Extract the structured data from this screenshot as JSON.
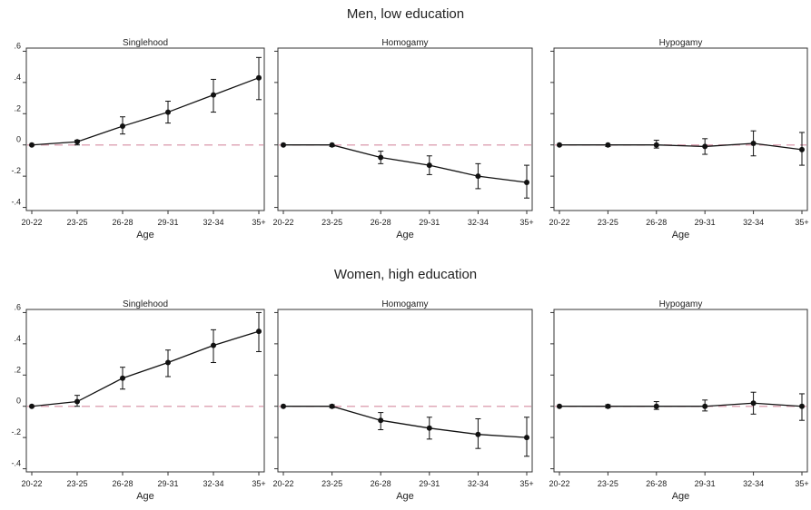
{
  "rows": [
    {
      "title": "Men, low education"
    },
    {
      "title": "Women, high education"
    }
  ],
  "chart_data": [
    {
      "type": "line",
      "group": "Men, low education",
      "title": "Singlehood",
      "xlabel": "Age",
      "categories": [
        "20-22",
        "23-25",
        "26-28",
        "29-31",
        "32-34",
        "35+"
      ],
      "values": [
        0,
        0.02,
        0.12,
        0.21,
        0.32,
        0.43
      ],
      "ci_low": [
        0,
        0.0,
        0.07,
        0.14,
        0.21,
        0.29
      ],
      "ci_high": [
        0,
        0.03,
        0.18,
        0.28,
        0.42,
        0.56
      ],
      "ylim": [
        -0.42,
        0.62
      ],
      "yticks": [
        -0.4,
        -0.2,
        0,
        0.2,
        0.4,
        0.6
      ],
      "ytick_labels": [
        "-.4",
        "-.2",
        "0",
        ".2",
        ".4",
        ".6"
      ],
      "reference_line": 0
    },
    {
      "type": "line",
      "group": "Men, low education",
      "title": "Homogamy",
      "xlabel": "Age",
      "categories": [
        "20-22",
        "23-25",
        "26-28",
        "29-31",
        "32-34",
        "35+"
      ],
      "values": [
        0,
        0,
        -0.08,
        -0.13,
        -0.2,
        -0.24
      ],
      "ci_low": [
        0,
        -0.01,
        -0.12,
        -0.19,
        -0.28,
        -0.34
      ],
      "ci_high": [
        0,
        0.0,
        -0.04,
        -0.07,
        -0.12,
        -0.13
      ],
      "ylim": [
        -0.42,
        0.62
      ],
      "yticks": [
        -0.4,
        -0.2,
        0,
        0.2,
        0.4,
        0.6
      ],
      "reference_line": 0
    },
    {
      "type": "line",
      "group": "Men, low education",
      "title": "Hypogamy",
      "xlabel": "Age",
      "categories": [
        "20-22",
        "23-25",
        "26-28",
        "29-31",
        "32-34",
        "35+"
      ],
      "values": [
        0,
        0,
        0,
        -0.01,
        0.01,
        -0.03
      ],
      "ci_low": [
        0,
        -0.01,
        -0.02,
        -0.06,
        -0.07,
        -0.13
      ],
      "ci_high": [
        0,
        0.0,
        0.03,
        0.04,
        0.09,
        0.08
      ],
      "ylim": [
        -0.42,
        0.62
      ],
      "yticks": [
        -0.4,
        -0.2,
        0,
        0.2,
        0.4,
        0.6
      ],
      "reference_line": 0
    },
    {
      "type": "line",
      "group": "Women, high education",
      "title": "Singlehood",
      "xlabel": "Age",
      "categories": [
        "20-22",
        "23-25",
        "26-28",
        "29-31",
        "32-34",
        "35+"
      ],
      "values": [
        0,
        0.03,
        0.18,
        0.28,
        0.39,
        0.48
      ],
      "ci_low": [
        0,
        0.0,
        0.11,
        0.19,
        0.28,
        0.35
      ],
      "ci_high": [
        0,
        0.07,
        0.25,
        0.36,
        0.49,
        0.6
      ],
      "ylim": [
        -0.42,
        0.62
      ],
      "yticks": [
        -0.4,
        -0.2,
        0,
        0.2,
        0.4,
        0.6
      ],
      "ytick_labels": [
        "-.4",
        "-.2",
        "0",
        ".2",
        ".4",
        ".6"
      ],
      "reference_line": 0
    },
    {
      "type": "line",
      "group": "Women, high education",
      "title": "Homogamy",
      "xlabel": "Age",
      "categories": [
        "20-22",
        "23-25",
        "26-28",
        "29-31",
        "32-34",
        "35+"
      ],
      "values": [
        0,
        0,
        -0.09,
        -0.14,
        -0.18,
        -0.2
      ],
      "ci_low": [
        0,
        -0.01,
        -0.15,
        -0.21,
        -0.27,
        -0.32
      ],
      "ci_high": [
        0,
        0.01,
        -0.04,
        -0.07,
        -0.08,
        -0.07
      ],
      "ylim": [
        -0.42,
        0.62
      ],
      "yticks": [
        -0.4,
        -0.2,
        0,
        0.2,
        0.4,
        0.6
      ],
      "reference_line": 0
    },
    {
      "type": "line",
      "group": "Women, high education",
      "title": "Hypogamy",
      "xlabel": "Age",
      "categories": [
        "20-22",
        "23-25",
        "26-28",
        "29-31",
        "32-34",
        "35+"
      ],
      "values": [
        0,
        0,
        0,
        0,
        0.02,
        0
      ],
      "ci_low": [
        0,
        -0.01,
        -0.02,
        -0.03,
        -0.05,
        -0.09
      ],
      "ci_high": [
        0,
        0.01,
        0.03,
        0.04,
        0.09,
        0.08
      ],
      "ylim": [
        -0.42,
        0.62
      ],
      "yticks": [
        -0.4,
        -0.2,
        0,
        0.2,
        0.4,
        0.6
      ],
      "reference_line": 0
    }
  ],
  "colors": {
    "line": "#111111",
    "reference_line": "#e0a8b8",
    "frame": "#333333"
  }
}
